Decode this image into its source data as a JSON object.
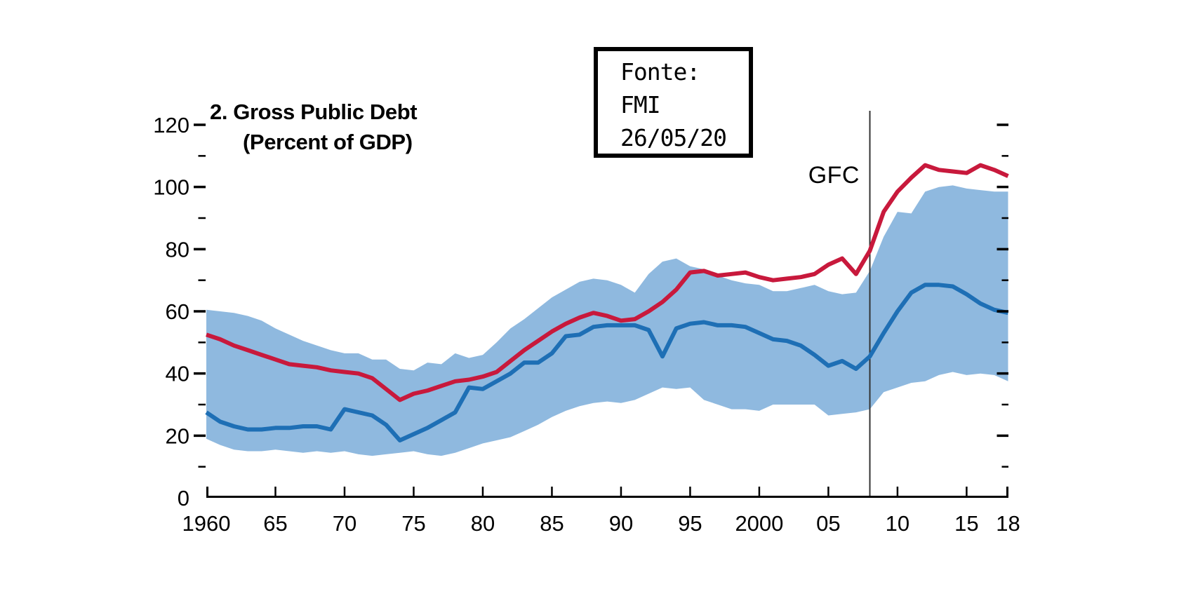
{
  "page": {
    "background": "#ffffff"
  },
  "chart_data": {
    "type": "line",
    "title": "2. Gross Public Debt",
    "subtitle": "(Percent of GDP)",
    "grid": false,
    "legend": "none",
    "xlim": [
      1960,
      2018
    ],
    "ylim": [
      0,
      120
    ],
    "ylabel": "Percent of GDP",
    "annotations": {
      "gfc_label": "GFC",
      "gfc_year": 2008,
      "source_box_lines": [
        "Fonte:",
        "FMI",
        "26/05/20"
      ]
    },
    "x_axis": {
      "ticks": [
        {
          "label": "1960",
          "year": 1960
        },
        {
          "label": "65",
          "year": 1965
        },
        {
          "label": "70",
          "year": 1970
        },
        {
          "label": "75",
          "year": 1975
        },
        {
          "label": "80",
          "year": 1980
        },
        {
          "label": "85",
          "year": 1985
        },
        {
          "label": "90",
          "year": 1990
        },
        {
          "label": "95",
          "year": 1995
        },
        {
          "label": "2000",
          "year": 2000
        },
        {
          "label": "05",
          "year": 2005
        },
        {
          "label": "10",
          "year": 2010
        },
        {
          "label": "15",
          "year": 2015
        },
        {
          "label": "18",
          "year": 2018
        }
      ]
    },
    "y_axis": {
      "major_ticks": [
        0,
        20,
        40,
        60,
        80,
        100,
        120
      ],
      "minor_ticks": [
        10,
        30,
        50,
        70,
        90,
        110
      ]
    },
    "years": [
      1960,
      1961,
      1962,
      1963,
      1964,
      1965,
      1966,
      1967,
      1968,
      1969,
      1970,
      1971,
      1972,
      1973,
      1974,
      1975,
      1976,
      1977,
      1978,
      1979,
      1980,
      1981,
      1982,
      1983,
      1984,
      1985,
      1986,
      1987,
      1988,
      1989,
      1990,
      1991,
      1992,
      1993,
      1994,
      1995,
      1996,
      1997,
      1998,
      1999,
      2000,
      2001,
      2002,
      2003,
      2004,
      2005,
      2006,
      2007,
      2008,
      2009,
      2010,
      2011,
      2012,
      2013,
      2014,
      2015,
      2016,
      2017,
      2018
    ],
    "series": [
      {
        "name": "red-line",
        "color": "#C8193C",
        "values": [
          52.5,
          51,
          49,
          47.5,
          46,
          44.5,
          43,
          42.5,
          42,
          41,
          40.5,
          40,
          38.5,
          35,
          31.5,
          33.5,
          34.5,
          36,
          37.5,
          38,
          39,
          40.5,
          44,
          47.5,
          50.5,
          53.5,
          56,
          58,
          59.5,
          58.5,
          57,
          57.5,
          60,
          63,
          67,
          72.5,
          73,
          71.5,
          72,
          72.5,
          71,
          70,
          70.5,
          71,
          72,
          75,
          77,
          72,
          79.5,
          92,
          98.5,
          103,
          107,
          105.5,
          105,
          104.5,
          107,
          105.5,
          103.5
        ]
      },
      {
        "name": "blue-line",
        "color": "#1E6FB5",
        "values": [
          27.5,
          24.5,
          23,
          22,
          22,
          22.5,
          22.5,
          23,
          23,
          22,
          28.5,
          27.5,
          26.5,
          23.5,
          18.5,
          20.5,
          22.5,
          25,
          27.5,
          35.5,
          35,
          37.5,
          40,
          43.5,
          43.5,
          46.5,
          52,
          52.5,
          55,
          55.5,
          55.5,
          55.5,
          54,
          45.5,
          54.5,
          56,
          56.5,
          55.5,
          55.5,
          55,
          53,
          51,
          50.5,
          49,
          46,
          42.5,
          44,
          41.5,
          45.5,
          53,
          60,
          66,
          68.5,
          68.5,
          68,
          65.5,
          62.5,
          60.5,
          59.5
        ]
      }
    ],
    "band": {
      "name": "country-range-band",
      "color": "#8FB9DF",
      "top": [
        60.5,
        60,
        59.5,
        58.5,
        57,
        54.5,
        52.5,
        50.5,
        49,
        47.5,
        46.5,
        46.5,
        44.5,
        44.5,
        41.5,
        41,
        43.5,
        43,
        46.5,
        45,
        46,
        50,
        54.5,
        57.5,
        61,
        64.5,
        67,
        69.5,
        70.5,
        70,
        68.5,
        66,
        72,
        76,
        77,
        74.5,
        73.5,
        71.5,
        70,
        69,
        68.5,
        66.5,
        66.5,
        67.5,
        68.5,
        66.5,
        65.5,
        66,
        73,
        84,
        92,
        91.5,
        98.5,
        100,
        100.5,
        99.5,
        99,
        98.5,
        98.5
      ],
      "bottom": [
        19,
        17,
        15.5,
        15,
        15,
        15.5,
        15,
        14.5,
        15,
        14.5,
        15,
        14,
        13.5,
        14,
        14.5,
        15,
        14,
        13.5,
        14.5,
        16,
        17.5,
        18.5,
        19.5,
        21.5,
        23.5,
        26,
        28,
        29.5,
        30.5,
        31,
        30.5,
        31.5,
        33.5,
        35.5,
        35,
        35.5,
        31.5,
        30,
        28.5,
        28.5,
        28,
        30,
        30,
        30,
        30,
        26.5,
        27,
        27.5,
        28.5,
        34,
        35.5,
        37,
        37.5,
        39.5,
        40.5,
        39.5,
        40,
        39.5,
        37.5
      ]
    },
    "colors": {
      "red_line": "#C8193C",
      "blue_line": "#1E6FB5",
      "band_fill": "#8FB9DF",
      "axis": "#000000",
      "gfc_line": "#333333"
    }
  }
}
